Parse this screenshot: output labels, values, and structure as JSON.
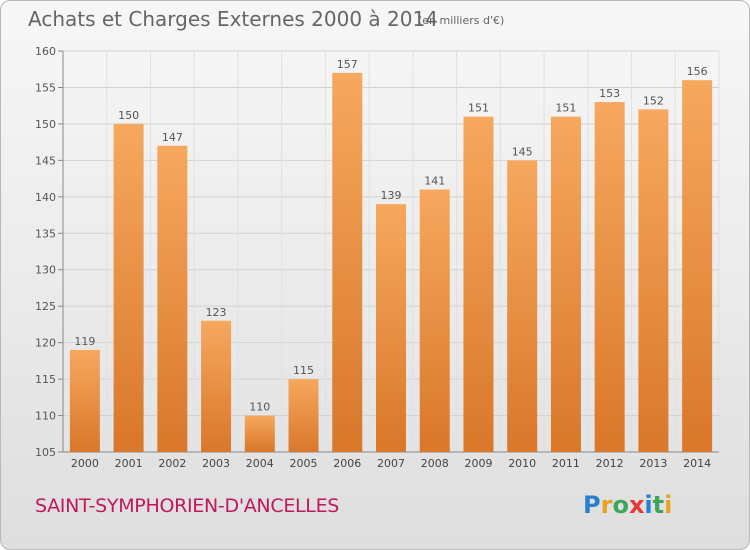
{
  "title": "Achats et Charges Externes 2000 à 2014",
  "subtitle": "(en milliers d'€)",
  "town": "SAINT-SYMPHORIEN-D'ANCELLES",
  "logo": {
    "text": "Proxiti",
    "letter_colors": [
      "#2b7fd0",
      "#e8a320",
      "#3da65a",
      "#e53935",
      "#2b7fd0",
      "#3da65a",
      "#e8a320"
    ]
  },
  "colors": {
    "bar": "#f0913d",
    "bar_light": "#f6a85e",
    "bar_dark": "#d9772a",
    "text": "#555555",
    "grid": "#cfcfcf",
    "town": "#c2185b"
  },
  "chart_data": {
    "type": "bar",
    "title": "Achats et Charges Externes 2000 à 2014",
    "categories": [
      "2000",
      "2001",
      "2002",
      "2003",
      "2004",
      "2005",
      "2006",
      "2007",
      "2008",
      "2009",
      "2010",
      "2011",
      "2012",
      "2013",
      "2014"
    ],
    "values": [
      119,
      150,
      147,
      123,
      110,
      115,
      157,
      139,
      141,
      151,
      145,
      151,
      153,
      152,
      156
    ],
    "ylim": [
      105,
      160
    ],
    "yticks": [
      105,
      110,
      115,
      120,
      125,
      130,
      135,
      140,
      145,
      150,
      155,
      160
    ],
    "grid": true,
    "data_labels": true
  }
}
